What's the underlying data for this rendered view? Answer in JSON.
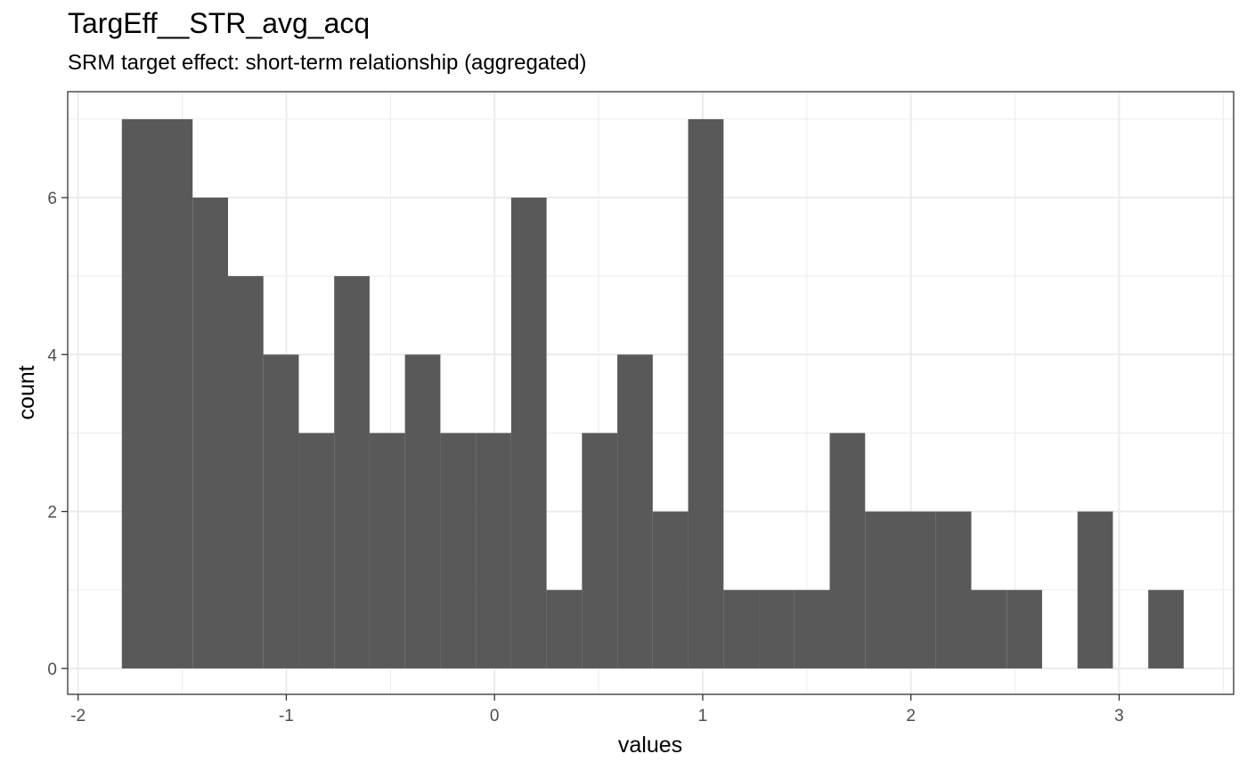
{
  "chart_data": {
    "type": "histogram",
    "title": "TargEff__STR_avg_acq",
    "subtitle": "SRM target effect: short-term relationship (aggregated)",
    "xlabel": "values",
    "ylabel": "count",
    "xlim": [
      -2.05,
      3.55
    ],
    "ylim": [
      -0.33,
      7.35
    ],
    "x_ticks": [
      -2,
      -1,
      0,
      1,
      2,
      3
    ],
    "x_tick_labels": [
      "-2",
      "-1",
      "0",
      "1",
      "2",
      "3"
    ],
    "y_ticks": [
      0,
      2,
      4,
      6
    ],
    "y_tick_labels": [
      "0",
      "2",
      "4",
      "6"
    ],
    "grid": true,
    "bar_color": "#595959",
    "bins": [
      {
        "x0": -1.79,
        "x1": -1.62,
        "count": 7
      },
      {
        "x0": -1.62,
        "x1": -1.45,
        "count": 7
      },
      {
        "x0": -1.45,
        "x1": -1.28,
        "count": 6
      },
      {
        "x0": -1.28,
        "x1": -1.11,
        "count": 5
      },
      {
        "x0": -1.11,
        "x1": -0.94,
        "count": 4
      },
      {
        "x0": -0.94,
        "x1": -0.77,
        "count": 3
      },
      {
        "x0": -0.77,
        "x1": -0.6,
        "count": 5
      },
      {
        "x0": -0.6,
        "x1": -0.43,
        "count": 3
      },
      {
        "x0": -0.43,
        "x1": -0.26,
        "count": 4
      },
      {
        "x0": -0.26,
        "x1": -0.09,
        "count": 3
      },
      {
        "x0": -0.09,
        "x1": 0.08,
        "count": 3
      },
      {
        "x0": 0.08,
        "x1": 0.25,
        "count": 6
      },
      {
        "x0": 0.25,
        "x1": 0.42,
        "count": 1
      },
      {
        "x0": 0.42,
        "x1": 0.59,
        "count": 3
      },
      {
        "x0": 0.59,
        "x1": 0.76,
        "count": 4
      },
      {
        "x0": 0.76,
        "x1": 0.93,
        "count": 2
      },
      {
        "x0": 0.93,
        "x1": 1.1,
        "count": 7
      },
      {
        "x0": 1.1,
        "x1": 1.27,
        "count": 1
      },
      {
        "x0": 1.27,
        "x1": 1.44,
        "count": 1
      },
      {
        "x0": 1.44,
        "x1": 1.61,
        "count": 1
      },
      {
        "x0": 1.61,
        "x1": 1.78,
        "count": 3
      },
      {
        "x0": 1.78,
        "x1": 1.95,
        "count": 2
      },
      {
        "x0": 1.95,
        "x1": 2.12,
        "count": 2
      },
      {
        "x0": 2.12,
        "x1": 2.29,
        "count": 2
      },
      {
        "x0": 2.29,
        "x1": 2.46,
        "count": 1
      },
      {
        "x0": 2.46,
        "x1": 2.63,
        "count": 1
      },
      {
        "x0": 2.63,
        "x1": 2.8,
        "count": 0
      },
      {
        "x0": 2.8,
        "x1": 2.97,
        "count": 2
      },
      {
        "x0": 2.97,
        "x1": 3.14,
        "count": 0
      },
      {
        "x0": 3.14,
        "x1": 3.31,
        "count": 1
      }
    ]
  }
}
